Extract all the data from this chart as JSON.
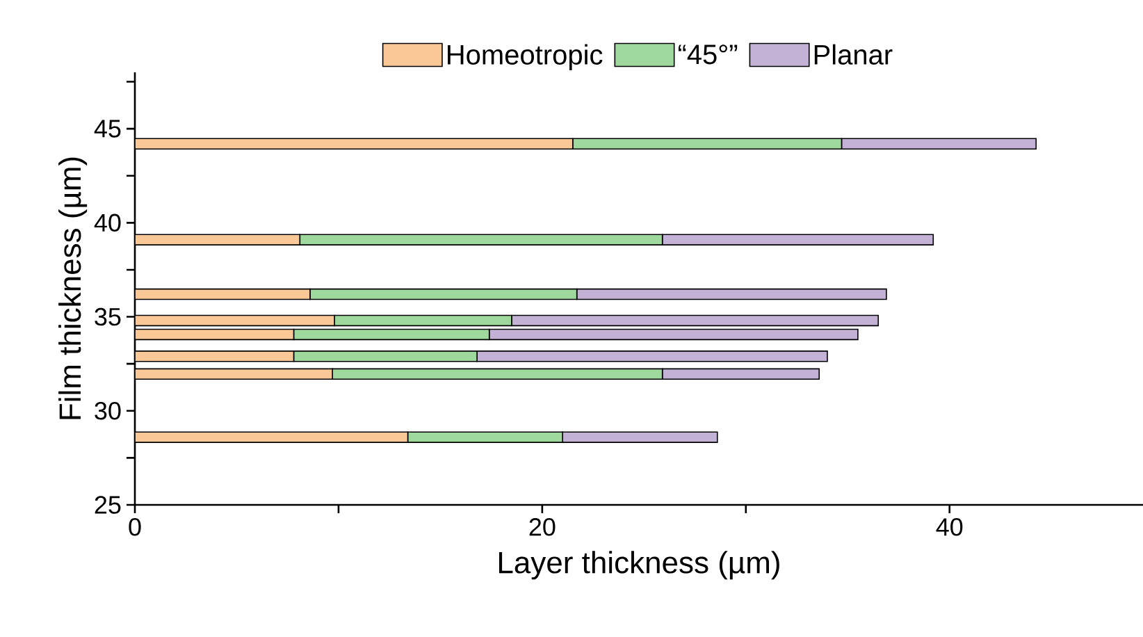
{
  "chart_data": {
    "type": "bar",
    "orientation": "horizontal",
    "stacked": true,
    "xlabel": "Layer thickness (µm)",
    "ylabel": "Film thickness (µm)",
    "x": [
      44.2,
      39.1,
      36.2,
      34.8,
      34.06,
      32.9,
      31.96,
      28.6
    ],
    "series": [
      {
        "name": "Homeotropic",
        "color": "#fac896",
        "values": [
          21.5,
          8.1,
          8.6,
          9.8,
          7.8,
          7.8,
          9.7,
          13.4
        ]
      },
      {
        "name": "“45°”",
        "color": "#9ed89c",
        "values": [
          13.2,
          17.8,
          13.1,
          8.7,
          9.6,
          9.0,
          16.2,
          7.6
        ]
      },
      {
        "name": "Planar",
        "color": "#c3b2d6",
        "values": [
          9.55,
          13.3,
          15.2,
          18.0,
          18.1,
          17.2,
          7.7,
          7.6
        ]
      }
    ],
    "xlim": [
      0,
      49.5
    ],
    "xticks": [
      0,
      {
        "value": 10,
        "label": null
      },
      20,
      {
        "value": 30,
        "label": null
      },
      40
    ],
    "ylim": [
      25,
      48
    ],
    "yticks": [
      25,
      {
        "value": 27.5,
        "label": null
      },
      30,
      {
        "value": 32.5,
        "label": null
      },
      35,
      {
        "value": 37.5,
        "label": null
      },
      40,
      {
        "value": 42.5,
        "label": null
      },
      45,
      {
        "value": 47.5,
        "label": null
      }
    ],
    "legend": "top",
    "grid": false
  }
}
